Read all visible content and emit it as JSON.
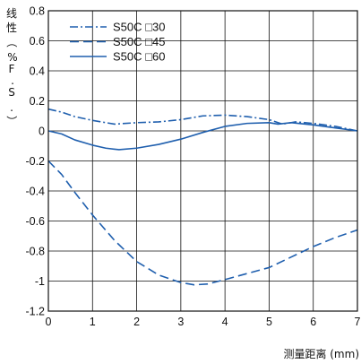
{
  "chart_data": {
    "type": "line",
    "ylabel": "线性（%F.S.）",
    "xlabel": "测量距离 (mm)",
    "xlim": [
      0,
      7
    ],
    "ylim": [
      -1.2,
      0.8
    ],
    "xticks": [
      "0",
      "1",
      "2",
      "3",
      "4",
      "5",
      "6",
      "7"
    ],
    "yticks": [
      "0.8",
      "0.6",
      "0.4",
      "0.2",
      "0",
      "-0.2",
      "-0.4",
      "-0.6",
      "-0.8",
      "-1",
      "-1.2"
    ],
    "grid": true,
    "legend_position": "top-left",
    "line_color": "#1f5fae",
    "series": [
      {
        "name": "S50C □30",
        "style": "dash-dot",
        "x": [
          0,
          0.3,
          0.6,
          1.0,
          1.5,
          2.0,
          2.5,
          3.0,
          3.5,
          4.0,
          4.5,
          5.0,
          5.3,
          5.6,
          6.0,
          6.5,
          7.0
        ],
        "y": [
          0.145,
          0.125,
          0.095,
          0.07,
          0.045,
          0.055,
          0.06,
          0.075,
          0.1,
          0.105,
          0.095,
          0.075,
          0.045,
          0.06,
          0.05,
          0.03,
          0.0
        ]
      },
      {
        "name": "S50C □45",
        "style": "dashed",
        "x": [
          0,
          0.3,
          0.6,
          1.0,
          1.5,
          2.0,
          2.5,
          3.0,
          3.3,
          3.6,
          4.0,
          4.5,
          5.0,
          5.5,
          6.0,
          6.5,
          7.0
        ],
        "y": [
          -0.2,
          -0.29,
          -0.41,
          -0.56,
          -0.73,
          -0.87,
          -0.96,
          -1.01,
          -1.025,
          -1.02,
          -0.99,
          -0.95,
          -0.91,
          -0.84,
          -0.77,
          -0.71,
          -0.66
        ]
      },
      {
        "name": "S50C □60",
        "style": "solid",
        "x": [
          0,
          0.3,
          0.6,
          1.0,
          1.3,
          1.6,
          2.0,
          2.5,
          3.0,
          3.5,
          4.0,
          4.5,
          5.0,
          5.2,
          5.5,
          6.0,
          6.5,
          7.0
        ],
        "y": [
          0.0,
          -0.02,
          -0.06,
          -0.095,
          -0.115,
          -0.125,
          -0.115,
          -0.09,
          -0.055,
          -0.01,
          0.03,
          0.05,
          0.055,
          0.045,
          0.055,
          0.04,
          0.02,
          0.0
        ]
      }
    ]
  }
}
